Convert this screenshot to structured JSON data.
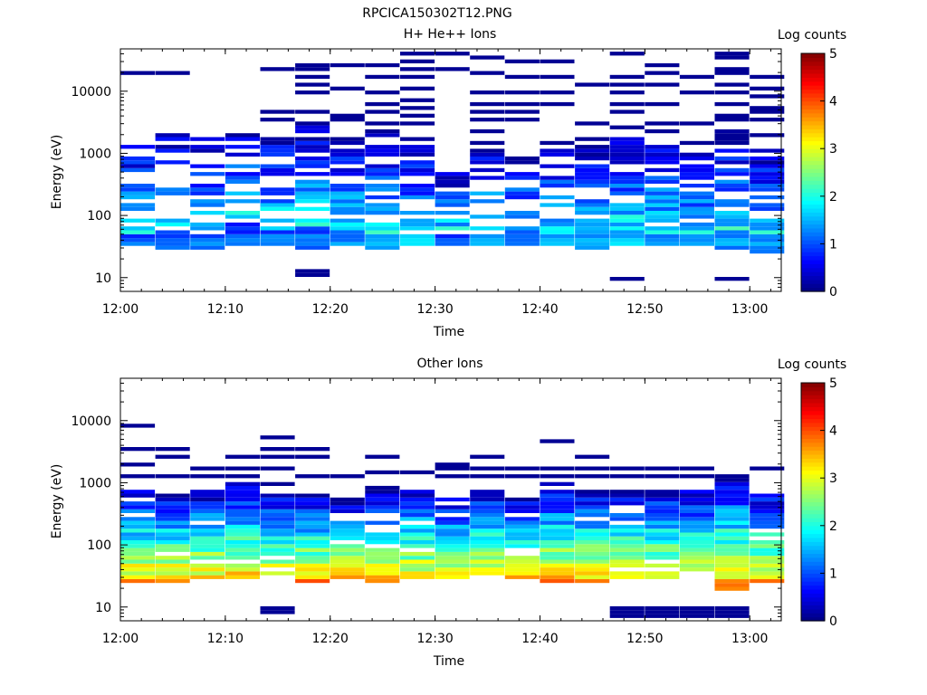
{
  "page_title": "RPCICA150302T12.PNG",
  "chart_data": [
    {
      "type": "heatmap",
      "title": "H+ He++ Ions",
      "xlabel": "Time",
      "ylabel": "Energy (eV)",
      "x_scale": "time",
      "x_range": [
        "12:00",
        "13:03"
      ],
      "x_ticks": [
        "12:00",
        "12:10",
        "12:20",
        "12:30",
        "12:40",
        "12:50",
        "13:00"
      ],
      "y_scale": "log",
      "y_range": [
        6,
        48000
      ],
      "y_ticks": [
        "10",
        "100",
        "1000",
        "10000"
      ],
      "colorbar": {
        "label": "Log counts",
        "range": [
          0,
          5
        ],
        "ticks": [
          "0",
          "1",
          "2",
          "3",
          "4",
          "5"
        ],
        "colormap": "jet"
      },
      "time_bins": [
        "12:00",
        "12:03",
        "12:06",
        "12:10",
        "12:13",
        "12:16",
        "12:19",
        "12:23",
        "12:26",
        "12:29",
        "12:32",
        "12:35",
        "12:39",
        "12:42",
        "12:45",
        "12:48",
        "12:51",
        "12:55",
        "12:58"
      ],
      "columns": [
        {
          "t": "12:00",
          "low": 31,
          "high": 48,
          "peak_e": 37,
          "peak": 1.2,
          "top": 2000,
          "fill": 0.55,
          "sparse": [
            71,
            200,
            500,
            1100,
            1700,
            21000
          ],
          "seed": 11
        },
        {
          "t": "12:03",
          "low": 27,
          "high": 60,
          "peak_e": 36,
          "peak": 1.3,
          "top": 2100,
          "fill": 0.5,
          "sparse": [
            180,
            500,
            900,
            1500,
            18500
          ],
          "seed": 12
        },
        {
          "t": "12:06",
          "low": 27,
          "high": 48,
          "peak_e": 37,
          "peak": 1.3,
          "top": 1700,
          "fill": 0.5,
          "sparse": [
            220,
            650,
            1350
          ],
          "seed": 13
        },
        {
          "t": "12:10",
          "low": 31,
          "high": 78,
          "peak_e": 37,
          "peak": 1.3,
          "top": 2500,
          "fill": 0.5,
          "sparse": [
            75,
            220,
            450,
            900,
            1300,
            2200
          ],
          "seed": 14
        },
        {
          "t": "12:13",
          "low": 31,
          "high": 60,
          "peak_e": 37,
          "peak": 1.4,
          "top": 1900,
          "fill": 0.6,
          "sparse": [
            110,
            200,
            500,
            900,
            3500,
            4400,
            22000
          ],
          "seed": 15
        },
        {
          "t": "12:16",
          "low": 27,
          "high": 70,
          "peak_e": 37,
          "peak": 1.4,
          "top": 2700,
          "fill": 0.7,
          "sparse": [
            11,
            12,
            80,
            100,
            130,
            3000,
            4500,
            9000,
            12000,
            17000,
            22000,
            28000
          ],
          "seed": 16
        },
        {
          "t": "12:19",
          "low": 31,
          "high": 55,
          "peak_e": 37,
          "peak": 1.4,
          "top": 2000,
          "fill": 0.6,
          "sparse": [
            70,
            90,
            130,
            3300,
            4200,
            11000,
            25000
          ],
          "seed": 17
        },
        {
          "t": "12:23",
          "low": 27,
          "high": 48,
          "peak_e": 37,
          "peak": 1.5,
          "top": 2400,
          "fill": 0.6,
          "sparse": [
            140,
            200,
            3000,
            4500,
            6500,
            10000,
            16000,
            27000
          ],
          "seed": 18
        },
        {
          "t": "12:26",
          "low": 31,
          "high": 48,
          "peak_e": 37,
          "peak": 1.8,
          "top": 1700,
          "fill": 0.65,
          "sparse": [
            100,
            140,
            3000,
            4300,
            5500,
            7500,
            11000,
            18000,
            22000,
            31000,
            40000
          ],
          "seed": 19
        },
        {
          "t": "12:29",
          "low": 31,
          "high": 48,
          "peak_e": 37,
          "peak": 1.2,
          "top": 600,
          "fill": 0.55,
          "sparse": [
            23000,
            40000
          ],
          "seed": 20
        },
        {
          "t": "12:32",
          "low": 31,
          "high": 48,
          "peak_e": 37,
          "peak": 1.7,
          "top": 1300,
          "fill": 0.6,
          "sparse": [
            150,
            1500,
            2400,
            3500,
            4500,
            6500,
            10000,
            18500,
            33000,
            37000
          ],
          "seed": 21
        },
        {
          "t": "12:35",
          "low": 31,
          "high": 55,
          "peak_e": 37,
          "peak": 1.4,
          "top": 1200,
          "fill": 0.6,
          "sparse": [
            150,
            3300,
            4500,
            6500,
            9000,
            17000,
            32000
          ],
          "seed": 22
        },
        {
          "t": "12:39",
          "low": 31,
          "high": 48,
          "peak_e": 37,
          "peak": 1.5,
          "top": 1500,
          "fill": 0.65,
          "sparse": [
            80,
            120,
            6000,
            10000,
            17000,
            32000
          ],
          "seed": 23
        },
        {
          "t": "12:42",
          "low": 27,
          "high": 48,
          "peak_e": 37,
          "peak": 1.5,
          "top": 1400,
          "fill": 0.7,
          "sparse": [
            75,
            100,
            1800,
            3000,
            12500
          ],
          "seed": 24
        },
        {
          "t": "12:45",
          "low": 31,
          "high": 55,
          "peak_e": 37,
          "peak": 1.8,
          "top": 1900,
          "fill": 0.75,
          "sparse": [
            9,
            10,
            120,
            2800,
            4500,
            6000,
            9500,
            13000,
            16500,
            38000
          ],
          "seed": 25
        },
        {
          "t": "12:48",
          "low": 31,
          "high": 48,
          "peak_e": 37,
          "peak": 1.5,
          "top": 1500,
          "fill": 0.7,
          "sparse": [
            100,
            140,
            2300,
            3000,
            6500,
            12000,
            21000,
            27000
          ],
          "seed": 26
        },
        {
          "t": "12:51",
          "low": 31,
          "high": 48,
          "peak_e": 37,
          "peak": 1.6,
          "top": 1000,
          "fill": 0.75,
          "sparse": [
            140,
            1400,
            3200,
            9000,
            17000
          ],
          "seed": 27
        },
        {
          "t": "12:55",
          "low": 27,
          "high": 55,
          "peak_e": 37,
          "peak": 1.5,
          "top": 2500,
          "fill": 0.8,
          "sparse": [
            9,
            10,
            140,
            3300,
            4200,
            6500,
            10000,
            13500,
            20000,
            24000,
            33000,
            38000
          ],
          "seed": 28
        },
        {
          "t": "12:58",
          "low": 23,
          "high": 48,
          "peak_e": 37,
          "peak": 1.4,
          "top": 1200,
          "fill": 0.75,
          "sparse": [
            80,
            100,
            130,
            160,
            2000,
            3300,
            4400,
            5500,
            8000,
            11000,
            18000
          ],
          "seed": 29
        }
      ]
    },
    {
      "type": "heatmap",
      "title": "Other Ions",
      "xlabel": "Time",
      "ylabel": "Energy (eV)",
      "x_scale": "time",
      "x_range": [
        "12:00",
        "13:03"
      ],
      "x_ticks": [
        "12:00",
        "12:10",
        "12:20",
        "12:30",
        "12:40",
        "12:50",
        "13:00"
      ],
      "y_scale": "log",
      "y_range": [
        6,
        48000
      ],
      "y_ticks": [
        "10",
        "100",
        "1000",
        "10000"
      ],
      "colorbar": {
        "label": "Log counts",
        "range": [
          0,
          5
        ],
        "ticks": [
          "0",
          "1",
          "2",
          "3",
          "4",
          "5"
        ],
        "colormap": "jet"
      },
      "time_bins": [
        "12:00",
        "12:03",
        "12:06",
        "12:10",
        "12:13",
        "12:16",
        "12:19",
        "12:23",
        "12:26",
        "12:29",
        "12:32",
        "12:35",
        "12:39",
        "12:42",
        "12:45",
        "12:48",
        "12:51",
        "12:55",
        "12:58"
      ],
      "columns": [
        {
          "t": "12:00",
          "low": 23,
          "high": 29,
          "peak_e": 38,
          "peak": 4.2,
          "top": 800,
          "fill": 0.9,
          "sparse": [
            1300,
            2000,
            3400,
            8200
          ],
          "seed": 31
        },
        {
          "t": "12:03",
          "low": 23,
          "high": 29,
          "peak_e": 38,
          "peak": 4.1,
          "top": 700,
          "fill": 0.9,
          "sparse": [
            1300,
            2700,
            3400
          ],
          "seed": 32
        },
        {
          "t": "12:06",
          "low": 27,
          "high": 29,
          "peak_e": 38,
          "peak": 4.0,
          "top": 800,
          "fill": 0.9,
          "sparse": [
            1300,
            1700
          ],
          "seed": 33
        },
        {
          "t": "12:10",
          "low": 27,
          "high": 29,
          "peak_e": 38,
          "peak": 4.1,
          "top": 1000,
          "fill": 0.9,
          "sparse": [
            1300,
            1800,
            2500
          ],
          "seed": 34
        },
        {
          "t": "12:13",
          "low": 27,
          "high": 29,
          "peak_e": 38,
          "peak": 4.3,
          "top": 700,
          "fill": 0.9,
          "sparse": [
            8,
            9,
            10,
            1000,
            1600,
            2500,
            3600,
            5000
          ],
          "seed": 35
        },
        {
          "t": "12:16",
          "low": 23,
          "high": 29,
          "peak_e": 38,
          "peak": 4.3,
          "top": 700,
          "fill": 0.9,
          "sparse": [
            1300,
            2800,
            3300
          ],
          "seed": 36
        },
        {
          "t": "12:19",
          "low": 27,
          "high": 29,
          "peak_e": 38,
          "peak": 4.2,
          "top": 600,
          "fill": 0.9,
          "sparse": [
            1200
          ],
          "seed": 37
        },
        {
          "t": "12:23",
          "low": 23,
          "high": 29,
          "peak_e": 38,
          "peak": 4.1,
          "top": 900,
          "fill": 0.9,
          "sparse": [
            1500,
            2600
          ],
          "seed": 38
        },
        {
          "t": "12:26",
          "low": 27,
          "high": 29,
          "peak_e": 38,
          "peak": 4.1,
          "top": 800,
          "fill": 0.9,
          "sparse": [
            1500
          ],
          "seed": 39
        },
        {
          "t": "12:29",
          "low": 27,
          "high": 29,
          "peak_e": 38,
          "peak": 4.1,
          "top": 700,
          "fill": 0.9,
          "sparse": [
            1200,
            1700,
            2100
          ],
          "seed": 40
        },
        {
          "t": "12:32",
          "low": 27,
          "high": 29,
          "peak_e": 38,
          "peak": 4.2,
          "top": 900,
          "fill": 0.9,
          "sparse": [
            1300,
            1800,
            2500
          ],
          "seed": 41
        },
        {
          "t": "12:35",
          "low": 27,
          "high": 29,
          "peak_e": 38,
          "peak": 4.1,
          "top": 700,
          "fill": 0.9,
          "sparse": [
            1300,
            1700
          ],
          "seed": 42
        },
        {
          "t": "12:39",
          "low": 23,
          "high": 29,
          "peak_e": 38,
          "peak": 4.3,
          "top": 1000,
          "fill": 0.9,
          "sparse": [
            1300,
            1800,
            4700
          ],
          "seed": 43
        },
        {
          "t": "12:42",
          "low": 23,
          "high": 29,
          "peak_e": 38,
          "peak": 4.2,
          "top": 800,
          "fill": 0.9,
          "sparse": [
            1200,
            1700,
            2500
          ],
          "seed": 44
        },
        {
          "t": "12:45",
          "low": 27,
          "high": 29,
          "peak_e": 38,
          "peak": 4.2,
          "top": 800,
          "fill": 0.9,
          "sparse": [
            7,
            8,
            9,
            10,
            1300,
            1700
          ],
          "seed": 45
        },
        {
          "t": "12:48",
          "low": 27,
          "high": 29,
          "peak_e": 38,
          "peak": 4.1,
          "top": 800,
          "fill": 0.9,
          "sparse": [
            7,
            8,
            9,
            10,
            1300,
            1700
          ],
          "seed": 46
        },
        {
          "t": "12:51",
          "low": 27,
          "high": 29,
          "peak_e": 38,
          "peak": 4.1,
          "top": 800,
          "fill": 0.9,
          "sparse": [
            7,
            8,
            9,
            10,
            1300,
            1700
          ],
          "seed": 47
        },
        {
          "t": "12:55",
          "low": 18,
          "high": 29,
          "peak_e": 38,
          "peak": 4.3,
          "top": 1300,
          "fill": 0.9,
          "sparse": [
            7,
            8,
            9,
            10,
            20
          ],
          "seed": 48
        },
        {
          "t": "12:58",
          "low": 23,
          "high": 29,
          "peak_e": 38,
          "peak": 4.2,
          "top": 800,
          "fill": 0.9,
          "sparse": [
            1800
          ],
          "seed": 49
        }
      ]
    }
  ]
}
